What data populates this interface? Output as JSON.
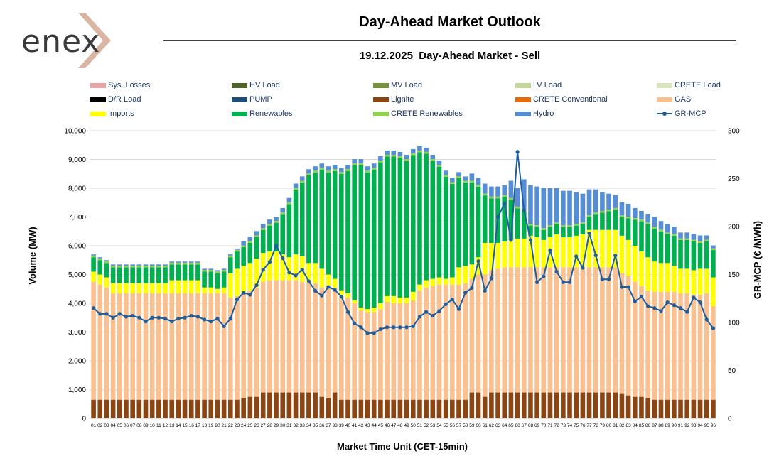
{
  "logo_text": "enex",
  "header": {
    "title": "Day-Ahead Market Outlook",
    "date": "19.12.2025",
    "subtitle": "Day-Ahead Market - Sell"
  },
  "chart_data": {
    "type": "bar",
    "stacked": true,
    "xlabel": "Market Time Unit (CET-15min)",
    "ylabel": "Volume (MW)",
    "y2label": "GR-MCP (€ /MWh)",
    "ylim": [
      0,
      10000
    ],
    "y2lim": [
      0,
      300
    ],
    "yticks": [
      0,
      1000,
      2000,
      3000,
      4000,
      5000,
      6000,
      7000,
      8000,
      9000,
      10000
    ],
    "yticklabels": [
      "0",
      "1,000",
      "2,000",
      "3,000",
      "4,000",
      "5,000",
      "6,000",
      "7,000",
      "8,000",
      "9,000",
      "10,000"
    ],
    "y2ticks": [
      0,
      50,
      100,
      150,
      200,
      250,
      300
    ],
    "categories": [
      "01",
      "02",
      "03",
      "04",
      "05",
      "06",
      "07",
      "08",
      "09",
      "10",
      "11",
      "12",
      "13",
      "14",
      "15",
      "16",
      "17",
      "18",
      "19",
      "20",
      "21",
      "22",
      "23",
      "24",
      "25",
      "26",
      "27",
      "28",
      "29",
      "30",
      "31",
      "32",
      "33",
      "34",
      "35",
      "36",
      "37",
      "38",
      "39",
      "40",
      "41",
      "42",
      "43",
      "44",
      "45",
      "46",
      "47",
      "48",
      "49",
      "50",
      "51",
      "52",
      "53",
      "54",
      "55",
      "56",
      "57",
      "58",
      "59",
      "60",
      "61",
      "62",
      "63",
      "64",
      "65",
      "66",
      "67",
      "68",
      "69",
      "70",
      "71",
      "72",
      "73",
      "74",
      "75",
      "76",
      "77",
      "78",
      "79",
      "80",
      "81",
      "82",
      "83",
      "84",
      "85",
      "86",
      "87",
      "88",
      "89",
      "90",
      "91",
      "92",
      "93",
      "94",
      "95",
      "96"
    ],
    "legend": [
      {
        "name": "Sys. Losses",
        "color": "#e6a4a4"
      },
      {
        "name": "HV Load",
        "color": "#4f6228"
      },
      {
        "name": "MV Load",
        "color": "#76933c"
      },
      {
        "name": "LV Load",
        "color": "#c4d79b"
      },
      {
        "name": "CRETE Load",
        "color": "#d8e4bc"
      },
      {
        "name": "D/R Load",
        "color": "#000000"
      },
      {
        "name": "PUMP",
        "color": "#1f4e79"
      },
      {
        "name": "Lignite",
        "color": "#8b4513"
      },
      {
        "name": "CRETE Conventional",
        "color": "#e46c0a"
      },
      {
        "name": "GAS",
        "color": "#fac090"
      },
      {
        "name": "Imports",
        "color": "#ffff00"
      },
      {
        "name": "Renewables",
        "color": "#00b050"
      },
      {
        "name": "CRETE Renewables",
        "color": "#92d050"
      },
      {
        "name": "Hydro",
        "color": "#558ed5"
      },
      {
        "name": "GR-MCP",
        "color": "#1f5e9e",
        "line": true
      }
    ],
    "series": [
      {
        "name": "Lignite",
        "color": "#8b4513",
        "values": [
          650,
          650,
          650,
          650,
          650,
          650,
          650,
          650,
          650,
          650,
          650,
          650,
          650,
          650,
          650,
          650,
          650,
          650,
          650,
          650,
          650,
          650,
          650,
          700,
          750,
          750,
          900,
          900,
          900,
          900,
          900,
          900,
          900,
          900,
          900,
          750,
          700,
          900,
          650,
          650,
          650,
          650,
          650,
          650,
          650,
          650,
          650,
          650,
          650,
          650,
          650,
          650,
          650,
          650,
          650,
          650,
          650,
          650,
          900,
          900,
          750,
          900,
          900,
          900,
          900,
          900,
          900,
          900,
          900,
          900,
          900,
          900,
          900,
          900,
          900,
          900,
          900,
          900,
          900,
          900,
          900,
          850,
          800,
          750,
          750,
          700,
          650,
          650,
          650,
          650,
          650,
          650,
          650,
          650,
          650,
          650
        ]
      },
      {
        "name": "GAS",
        "color": "#fac090",
        "values": [
          4100,
          4000,
          3900,
          3700,
          3700,
          3700,
          3700,
          3700,
          3700,
          3700,
          3700,
          3700,
          3700,
          3700,
          3700,
          3700,
          3700,
          3700,
          3700,
          3700,
          3700,
          3550,
          3600,
          3650,
          3700,
          3800,
          3850,
          3900,
          3900,
          3900,
          3900,
          3900,
          3850,
          3800,
          3800,
          3800,
          3900,
          3650,
          3600,
          3550,
          3350,
          3100,
          3050,
          3050,
          3150,
          3400,
          3350,
          3350,
          3350,
          3450,
          3800,
          3900,
          3950,
          4000,
          4000,
          4000,
          4000,
          4050,
          3950,
          4100,
          4250,
          4250,
          4300,
          4350,
          4350,
          4350,
          4350,
          4350,
          4350,
          4350,
          4350,
          4350,
          4350,
          4350,
          4350,
          4350,
          4350,
          4350,
          4350,
          4350,
          4350,
          4200,
          4150,
          4000,
          3850,
          3750,
          3750,
          3750,
          3750,
          3750,
          3700,
          3700,
          3650,
          3650,
          3700,
          3250
        ]
      },
      {
        "name": "Imports",
        "color": "#ffff00",
        "values": [
          350,
          350,
          350,
          350,
          350,
          350,
          350,
          350,
          350,
          350,
          350,
          350,
          450,
          450,
          450,
          450,
          450,
          200,
          200,
          150,
          200,
          850,
          950,
          950,
          950,
          1000,
          1000,
          1000,
          1000,
          900,
          800,
          900,
          900,
          700,
          700,
          650,
          400,
          300,
          200,
          150,
          100,
          100,
          100,
          150,
          200,
          200,
          250,
          200,
          200,
          300,
          200,
          250,
          250,
          250,
          200,
          250,
          600,
          600,
          500,
          600,
          1100,
          950,
          900,
          900,
          950,
          1000,
          1000,
          1100,
          1050,
          950,
          1050,
          1150,
          1050,
          1050,
          1100,
          1150,
          1300,
          1300,
          1300,
          1300,
          1300,
          1300,
          1250,
          1250,
          1200,
          1150,
          1050,
          1000,
          1000,
          900,
          850,
          850,
          850,
          900,
          850,
          1000
        ]
      },
      {
        "name": "Renewables",
        "color": "#00b050",
        "values": [
          500,
          500,
          500,
          550,
          550,
          550,
          550,
          550,
          550,
          550,
          550,
          550,
          550,
          550,
          550,
          550,
          550,
          550,
          550,
          550,
          550,
          550,
          600,
          650,
          700,
          750,
          800,
          900,
          1000,
          1400,
          1850,
          2250,
          2550,
          3050,
          3150,
          3450,
          3550,
          3750,
          4050,
          4250,
          4700,
          4950,
          4750,
          4800,
          4900,
          4850,
          4850,
          4850,
          4750,
          4750,
          4600,
          4400,
          4100,
          3850,
          3550,
          3250,
          3100,
          2900,
          2850,
          2450,
          1650,
          1550,
          1550,
          1550,
          1400,
          1050,
          950,
          350,
          350,
          350,
          350,
          350,
          350,
          350,
          350,
          350,
          450,
          550,
          600,
          650,
          700,
          650,
          750,
          900,
          1050,
          1150,
          1150,
          1100,
          1000,
          1050,
          1000,
          1000,
          1000,
          900,
          950,
          950
        ]
      },
      {
        "name": "CRETE Renewables",
        "color": "#92d050",
        "values": [
          60,
          60,
          60,
          60,
          60,
          60,
          60,
          60,
          60,
          60,
          60,
          60,
          60,
          60,
          60,
          60,
          60,
          60,
          60,
          60,
          60,
          60,
          60,
          60,
          60,
          60,
          60,
          60,
          60,
          60,
          60,
          60,
          60,
          60,
          60,
          60,
          60,
          60,
          60,
          60,
          60,
          60,
          60,
          60,
          60,
          60,
          60,
          60,
          60,
          60,
          60,
          60,
          60,
          60,
          60,
          60,
          60,
          60,
          60,
          60,
          60,
          60,
          60,
          60,
          60,
          60,
          60,
          60,
          60,
          60,
          60,
          60,
          60,
          60,
          60,
          60,
          60,
          60,
          60,
          60,
          60,
          60,
          60,
          60,
          60,
          60,
          60,
          60,
          60,
          60,
          60,
          60,
          60,
          60,
          60,
          60
        ]
      },
      {
        "name": "Hydro",
        "color": "#558ed5",
        "values": [
          40,
          40,
          40,
          40,
          40,
          40,
          40,
          40,
          40,
          40,
          40,
          40,
          40,
          40,
          40,
          40,
          40,
          40,
          40,
          40,
          40,
          40,
          40,
          140,
          150,
          150,
          150,
          150,
          150,
          150,
          150,
          150,
          150,
          150,
          150,
          150,
          150,
          150,
          150,
          150,
          150,
          150,
          150,
          150,
          150,
          150,
          150,
          150,
          150,
          150,
          150,
          150,
          150,
          150,
          150,
          150,
          150,
          150,
          250,
          250,
          350,
          350,
          350,
          350,
          600,
          650,
          1050,
          1350,
          1350,
          1400,
          1300,
          1200,
          1200,
          1200,
          1100,
          1000,
          900,
          800,
          650,
          550,
          450,
          450,
          450,
          350,
          300,
          300,
          350,
          300,
          300,
          250,
          200,
          200,
          200,
          200,
          150,
          100
        ]
      }
    ],
    "line": {
      "name": "GR-MCP",
      "color": "#1f5e9e",
      "values": [
        115,
        109,
        109,
        105,
        109,
        106,
        107,
        105,
        101,
        105,
        105,
        104,
        101,
        104,
        105,
        107,
        106,
        103,
        101,
        104,
        96,
        104,
        124,
        131,
        129,
        139,
        155,
        163,
        180,
        167,
        152,
        149,
        155,
        143,
        133,
        128,
        137,
        134,
        127,
        111,
        99,
        95,
        89,
        89,
        93,
        95,
        95,
        95,
        95,
        96,
        106,
        111,
        107,
        112,
        119,
        124,
        114,
        131,
        136,
        164,
        133,
        146,
        210,
        224,
        186,
        278,
        217,
        186,
        142,
        148,
        175,
        153,
        142,
        142,
        169,
        157,
        193,
        170,
        145,
        145,
        170,
        137,
        137,
        122,
        127,
        117,
        115,
        112,
        121,
        118,
        115,
        111,
        126,
        121,
        103,
        94
      ]
    }
  }
}
